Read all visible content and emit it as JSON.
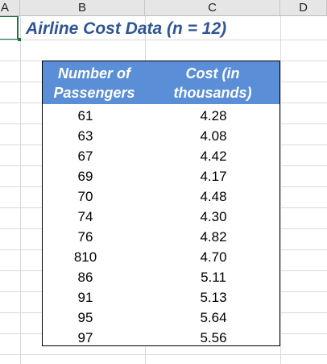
{
  "columns": [
    "A",
    "B",
    "C",
    "D"
  ],
  "title": "Airline Cost Data (n = 12)",
  "table": {
    "headers": [
      "Number of Passengers",
      "Cost (in thousands)"
    ],
    "header_lines": [
      [
        "Number of",
        "Passengers"
      ],
      [
        "Cost (in",
        "thousands)"
      ]
    ],
    "rows": [
      [
        "61",
        "4.28"
      ],
      [
        "63",
        "4.08"
      ],
      [
        "67",
        "4.42"
      ],
      [
        "69",
        "4.17"
      ],
      [
        "70",
        "4.48"
      ],
      [
        "74",
        "4.30"
      ],
      [
        "76",
        "4.82"
      ],
      [
        "810",
        "4.70"
      ],
      [
        "86",
        "5.11"
      ],
      [
        "91",
        "5.13"
      ],
      [
        "95",
        "5.64"
      ],
      [
        "97",
        "5.56"
      ]
    ]
  },
  "colors": {
    "title": "#2f5597",
    "header_fill": "#5a8ed6",
    "selection": "#217346"
  }
}
